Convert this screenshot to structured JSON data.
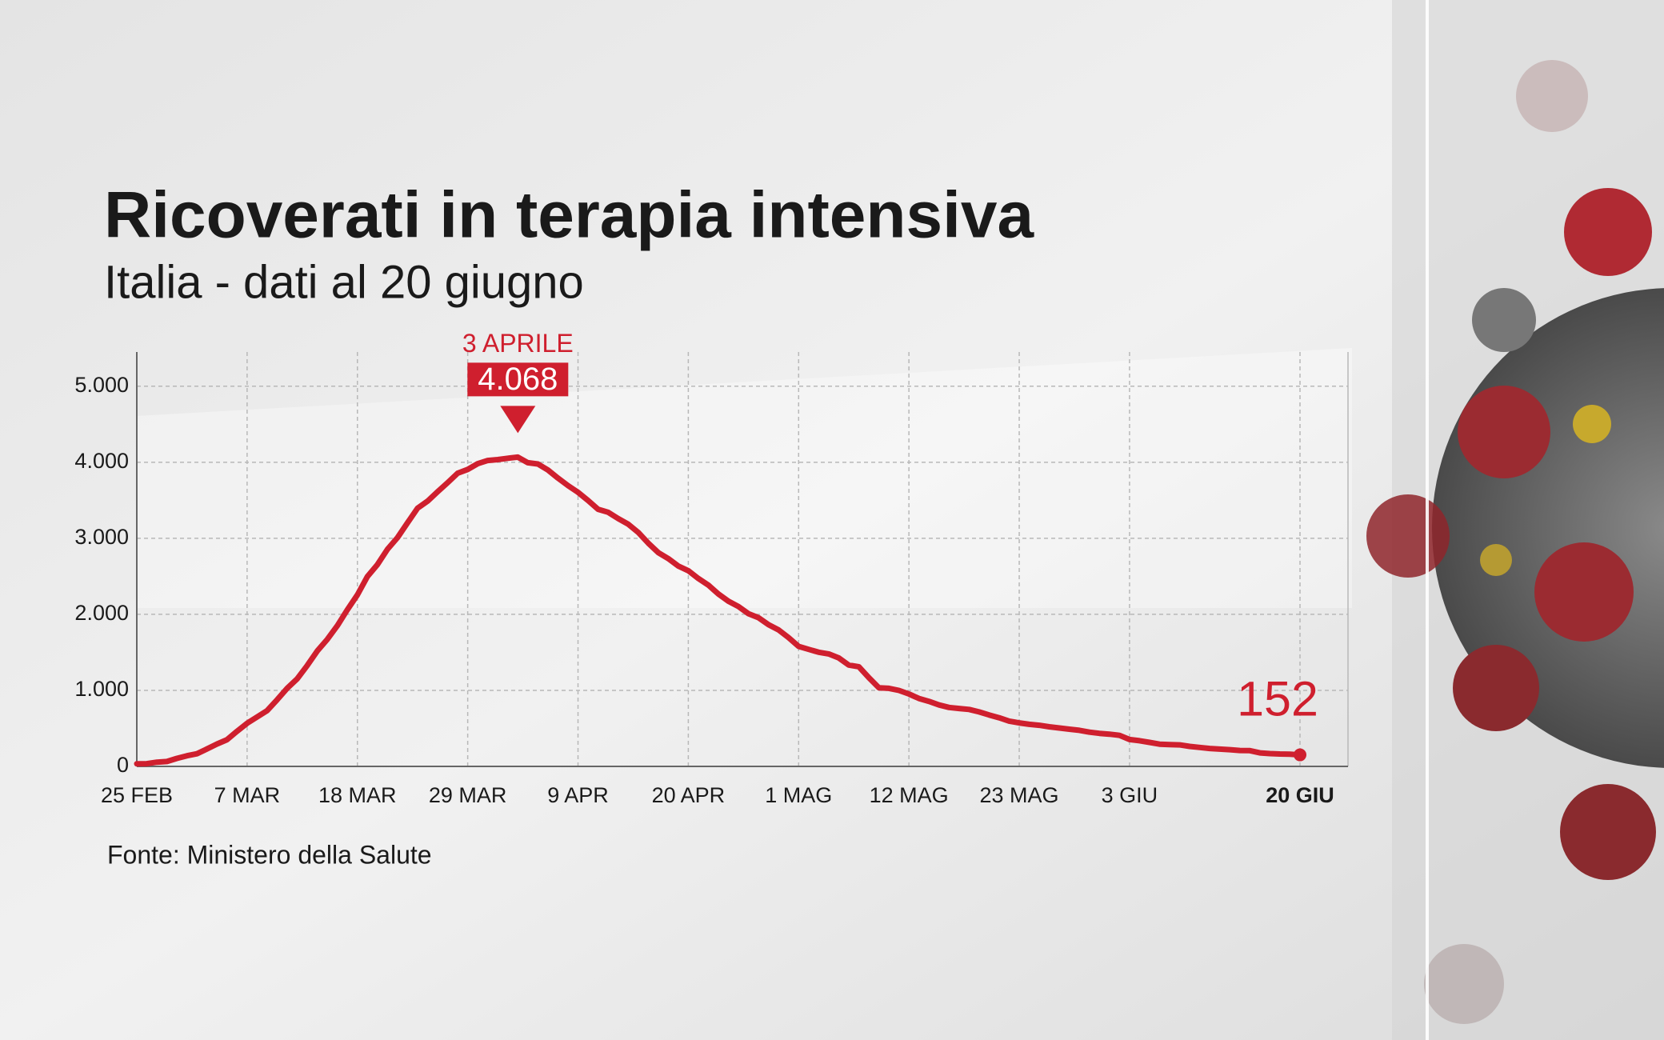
{
  "chart_data": {
    "type": "line",
    "title": "Ricoverati in terapia intensiva",
    "subtitle": "Italia - dati al 20 giugno",
    "source": "Fonte: Ministero della Salute",
    "annotation": "3 APRILE",
    "categories": [
      "25 FEB",
      null,
      null,
      null,
      null,
      null,
      null,
      null,
      null,
      null,
      null,
      "7 MAR",
      null,
      null,
      null,
      null,
      null,
      null,
      null,
      null,
      null,
      null,
      "18 MAR",
      null,
      null,
      null,
      null,
      null,
      null,
      null,
      null,
      null,
      null,
      "29 MAR",
      null,
      null,
      null,
      null,
      null,
      null,
      null,
      null,
      null,
      null,
      "9 APR",
      null,
      null,
      null,
      null,
      null,
      null,
      null,
      null,
      null,
      null,
      "20 APR",
      null,
      null,
      null,
      null,
      null,
      null,
      null,
      null,
      null,
      null,
      "1 MAG",
      null,
      null,
      null,
      null,
      null,
      null,
      null,
      null,
      null,
      null,
      "12 MAG",
      null,
      null,
      null,
      null,
      null,
      null,
      null,
      null,
      null,
      null,
      "23 MAG",
      null,
      null,
      null,
      null,
      null,
      null,
      null,
      null,
      null,
      null,
      "3 GIU",
      null,
      null,
      null,
      null,
      null,
      null,
      null,
      null,
      null,
      null,
      null,
      null,
      null,
      null,
      null,
      null,
      "20 GIU"
    ],
    "series": [
      {
        "name": "Ricoverati in terapia intensiva",
        "color": "#cf1f2e",
        "values": [
          35,
          36,
          56,
          64,
          105,
          140,
          166,
          229,
          295,
          351,
          462,
          567,
          650,
          733,
          877,
          1028,
          1153,
          1328,
          1518,
          1672,
          1851,
          2060,
          2257,
          2498,
          2655,
          2857,
          3009,
          3204,
          3396,
          3489,
          3612,
          3732,
          3856,
          3906,
          3981,
          4023,
          4035,
          4053,
          4068,
          3994,
          3977,
          3898,
          3792,
          3693,
          3605,
          3497,
          3381,
          3343,
          3260,
          3186,
          3079,
          2936,
          2812,
          2733,
          2635,
          2573,
          2471,
          2384,
          2267,
          2173,
          2102,
          2009,
          1956,
          1863,
          1795,
          1694,
          1578,
          1539,
          1501,
          1479,
          1427,
          1333,
          1311,
          1168,
          1034,
          1027,
          999,
          952,
          893,
          855,
          808,
          775,
          762,
          749,
          716,
          676,
          640,
          595,
          572,
          553,
          541,
          521,
          505,
          489,
          475,
          450,
          435,
          424,
          408,
          353,
          338,
          316,
          293,
          287,
          283,
          263,
          249,
          236,
          227,
          220,
          209,
          207,
          178,
          168,
          163,
          161,
          152
        ],
        "value_labels": [
          null,
          null,
          null,
          null,
          null,
          null,
          null,
          null,
          null,
          null,
          null,
          null,
          null,
          null,
          null,
          null,
          null,
          null,
          null,
          null,
          null,
          null,
          null,
          null,
          null,
          null,
          null,
          null,
          null,
          null,
          null,
          null,
          null,
          null,
          null,
          null,
          null,
          null,
          "4.068",
          null,
          null,
          null,
          null,
          null,
          null,
          null,
          null,
          null,
          null,
          null,
          null,
          null,
          null,
          null,
          null,
          null,
          null,
          null,
          null,
          null,
          null,
          null,
          null,
          null,
          null,
          null,
          null,
          null,
          null,
          null,
          null,
          null,
          null,
          null,
          null,
          null,
          null,
          null,
          null,
          null,
          null,
          null,
          null,
          null,
          null,
          null,
          null,
          null,
          null,
          null,
          null,
          null,
          null,
          null,
          null,
          null,
          null,
          null,
          null,
          null,
          null,
          null,
          null,
          null,
          null,
          null,
          null,
          null,
          null,
          null,
          null,
          null,
          null,
          null,
          null,
          null,
          "152"
        ]
      }
    ],
    "ylim": [
      0,
      5450
    ],
    "yticks": [
      0,
      {
        "value": 1000,
        "label": "1.000"
      },
      {
        "value": 2000,
        "label": "2.000"
      },
      {
        "value": 3000,
        "label": "3.000"
      },
      {
        "value": 4000,
        "label": "4.000"
      },
      {
        "value": 5000,
        "label": "5.000"
      }
    ],
    "grid": true
  }
}
